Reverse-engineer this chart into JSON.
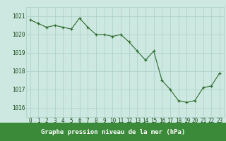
{
  "x": [
    0,
    1,
    2,
    3,
    4,
    5,
    6,
    7,
    8,
    9,
    10,
    11,
    12,
    13,
    14,
    15,
    16,
    17,
    18,
    19,
    20,
    21,
    22,
    23
  ],
  "y": [
    1020.8,
    1020.6,
    1020.4,
    1020.5,
    1020.4,
    1020.3,
    1020.9,
    1020.4,
    1020.0,
    1020.0,
    1019.9,
    1020.0,
    1019.6,
    1019.1,
    1018.6,
    1019.1,
    1017.5,
    1017.0,
    1016.4,
    1016.3,
    1016.4,
    1017.1,
    1017.2,
    1017.9
  ],
  "line_color": "#2d6a2d",
  "marker_color": "#2d6a2d",
  "bg_color": "#cce8e0",
  "grid_color": "#aacfc5",
  "xlabel": "Graphe pression niveau de la mer (hPa)",
  "xlabel_color": "white",
  "xlabel_bg": "#3a8a3a",
  "ylim": [
    1015.5,
    1021.5
  ],
  "xlim": [
    -0.5,
    23.5
  ],
  "yticks": [
    1016,
    1017,
    1018,
    1019,
    1020,
    1021
  ],
  "xticks": [
    0,
    1,
    2,
    3,
    4,
    5,
    6,
    7,
    8,
    9,
    10,
    11,
    12,
    13,
    14,
    15,
    16,
    17,
    18,
    19,
    20,
    21,
    22,
    23
  ],
  "tick_label_color": "#1a4a1a",
  "tick_fontsize": 5.5,
  "xlabel_fontsize": 6.5
}
